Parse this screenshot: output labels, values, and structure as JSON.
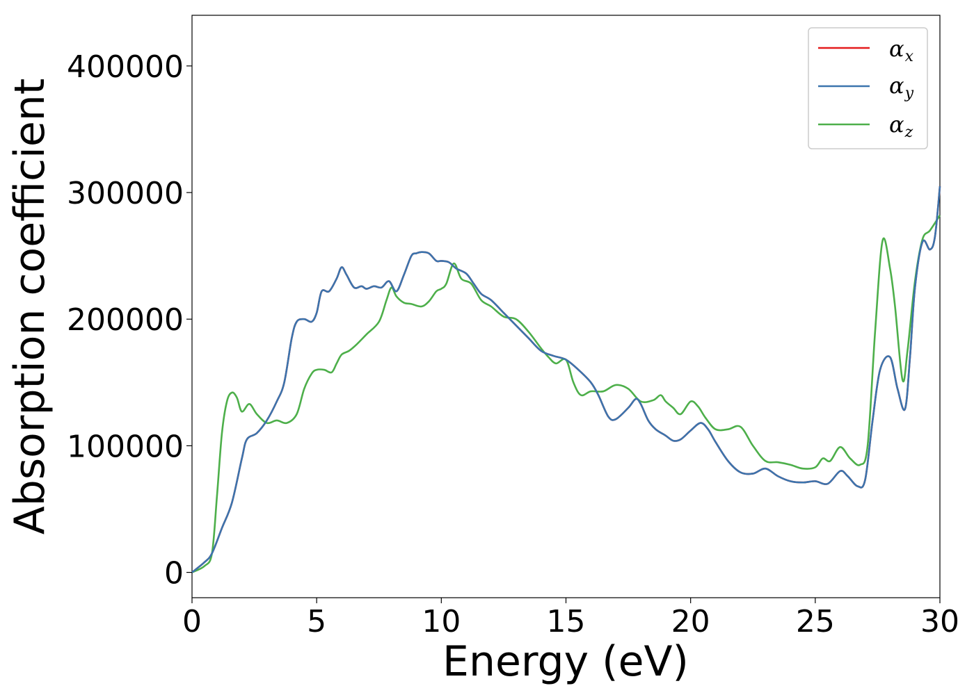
{
  "chart_data": {
    "type": "line",
    "title": "",
    "xlabel": "Energy (eV)",
    "ylabel": "Absorption coefficient",
    "xlim": [
      0,
      30
    ],
    "ylim": [
      -20000,
      440000
    ],
    "xticks": [
      0,
      5,
      10,
      15,
      20,
      25,
      30
    ],
    "yticks": [
      0,
      100000,
      200000,
      300000,
      400000
    ],
    "grid": false,
    "legend_position": "top-right",
    "series": [
      {
        "name": "α_x",
        "base": "α",
        "subscript": "x",
        "color": "#e41a1c",
        "same_as": "α_y",
        "x": [],
        "y": []
      },
      {
        "name": "α_y",
        "base": "α",
        "subscript": "y",
        "color": "#3b74ad",
        "x": [
          0,
          0.5,
          0.8,
          1.2,
          1.6,
          2.0,
          2.2,
          2.6,
          3.0,
          3.4,
          3.7,
          4.0,
          4.2,
          4.5,
          4.8,
          5.0,
          5.2,
          5.5,
          5.8,
          6.0,
          6.2,
          6.5,
          6.8,
          7.0,
          7.3,
          7.6,
          7.9,
          8.2,
          8.5,
          8.8,
          9.0,
          9.2,
          9.5,
          9.8,
          10.0,
          10.3,
          10.6,
          11.0,
          11.3,
          11.6,
          12.0,
          12.5,
          13.0,
          13.5,
          14.0,
          14.5,
          15.0,
          15.5,
          16.0,
          16.3,
          16.7,
          17.0,
          17.5,
          17.8,
          18.0,
          18.3,
          18.6,
          19.0,
          19.3,
          19.6,
          20.0,
          20.4,
          20.7,
          21.0,
          21.5,
          22.0,
          22.5,
          23.0,
          23.5,
          24.0,
          24.5,
          25.0,
          25.5,
          26.0,
          26.3,
          26.7,
          27.0,
          27.3,
          27.6,
          28.0,
          28.3,
          28.6,
          28.8,
          29.0,
          29.3,
          29.6,
          29.8,
          30.0
        ],
        "y": [
          0,
          8000,
          15000,
          35000,
          55000,
          90000,
          105000,
          110000,
          120000,
          135000,
          150000,
          185000,
          198000,
          200000,
          198000,
          205000,
          222000,
          222000,
          232000,
          241000,
          235000,
          225000,
          226000,
          224000,
          226000,
          225000,
          230000,
          222000,
          235000,
          250000,
          252000,
          253000,
          252000,
          246000,
          246000,
          245000,
          240000,
          236000,
          228000,
          220000,
          215000,
          205000,
          195000,
          185000,
          175000,
          171000,
          168000,
          160000,
          150000,
          140000,
          123000,
          121000,
          130000,
          137000,
          133000,
          120000,
          113000,
          108000,
          104000,
          105000,
          112000,
          118000,
          113000,
          103000,
          88000,
          79000,
          78000,
          82000,
          76000,
          72000,
          71000,
          72000,
          70000,
          80000,
          76000,
          68000,
          73000,
          120000,
          160000,
          170000,
          145000,
          129000,
          170000,
          225000,
          261000,
          255000,
          265000,
          305000
        ]
      },
      {
        "name": "α_z",
        "base": "α",
        "subscript": "z",
        "color": "#4daf4a",
        "x": [
          0,
          0.5,
          0.8,
          1.0,
          1.2,
          1.4,
          1.6,
          1.8,
          2.0,
          2.3,
          2.6,
          3.0,
          3.4,
          3.8,
          4.2,
          4.5,
          4.8,
          5.0,
          5.3,
          5.6,
          5.8,
          6.0,
          6.3,
          6.6,
          7.0,
          7.5,
          7.8,
          8.0,
          8.2,
          8.5,
          8.8,
          9.2,
          9.5,
          9.8,
          10.0,
          10.2,
          10.5,
          10.8,
          11.2,
          11.6,
          12.0,
          12.5,
          13.0,
          13.5,
          14.0,
          14.3,
          14.6,
          15.0,
          15.3,
          15.6,
          16.0,
          16.5,
          17.0,
          17.5,
          18.0,
          18.5,
          18.8,
          19.0,
          19.3,
          19.6,
          20.0,
          20.3,
          20.6,
          21.0,
          21.5,
          22.0,
          22.5,
          23.0,
          23.5,
          24.0,
          24.5,
          25.0,
          25.3,
          25.6,
          26.0,
          26.4,
          26.8,
          27.1,
          27.4,
          27.7,
          28.0,
          28.2,
          28.5,
          28.7,
          29.0,
          29.3,
          29.6,
          30.0
        ],
        "y": [
          0,
          5000,
          15000,
          60000,
          110000,
          135000,
          142000,
          138000,
          127000,
          133000,
          125000,
          118000,
          120000,
          118000,
          125000,
          145000,
          157000,
          160000,
          160000,
          158000,
          165000,
          172000,
          175000,
          180000,
          188000,
          198000,
          215000,
          225000,
          218000,
          213000,
          212000,
          210000,
          214000,
          222000,
          224000,
          228000,
          244000,
          232000,
          228000,
          215000,
          210000,
          202000,
          200000,
          190000,
          177000,
          170000,
          165000,
          168000,
          150000,
          140000,
          143000,
          143000,
          148000,
          145000,
          135000,
          136000,
          140000,
          135000,
          130000,
          125000,
          135000,
          131000,
          122000,
          113000,
          113000,
          115000,
          100000,
          88000,
          87000,
          85000,
          82000,
          83000,
          90000,
          88000,
          99000,
          90000,
          85000,
          100000,
          190000,
          262000,
          240000,
          210000,
          152000,
          175000,
          230000,
          263000,
          270000,
          282000
        ]
      }
    ]
  }
}
